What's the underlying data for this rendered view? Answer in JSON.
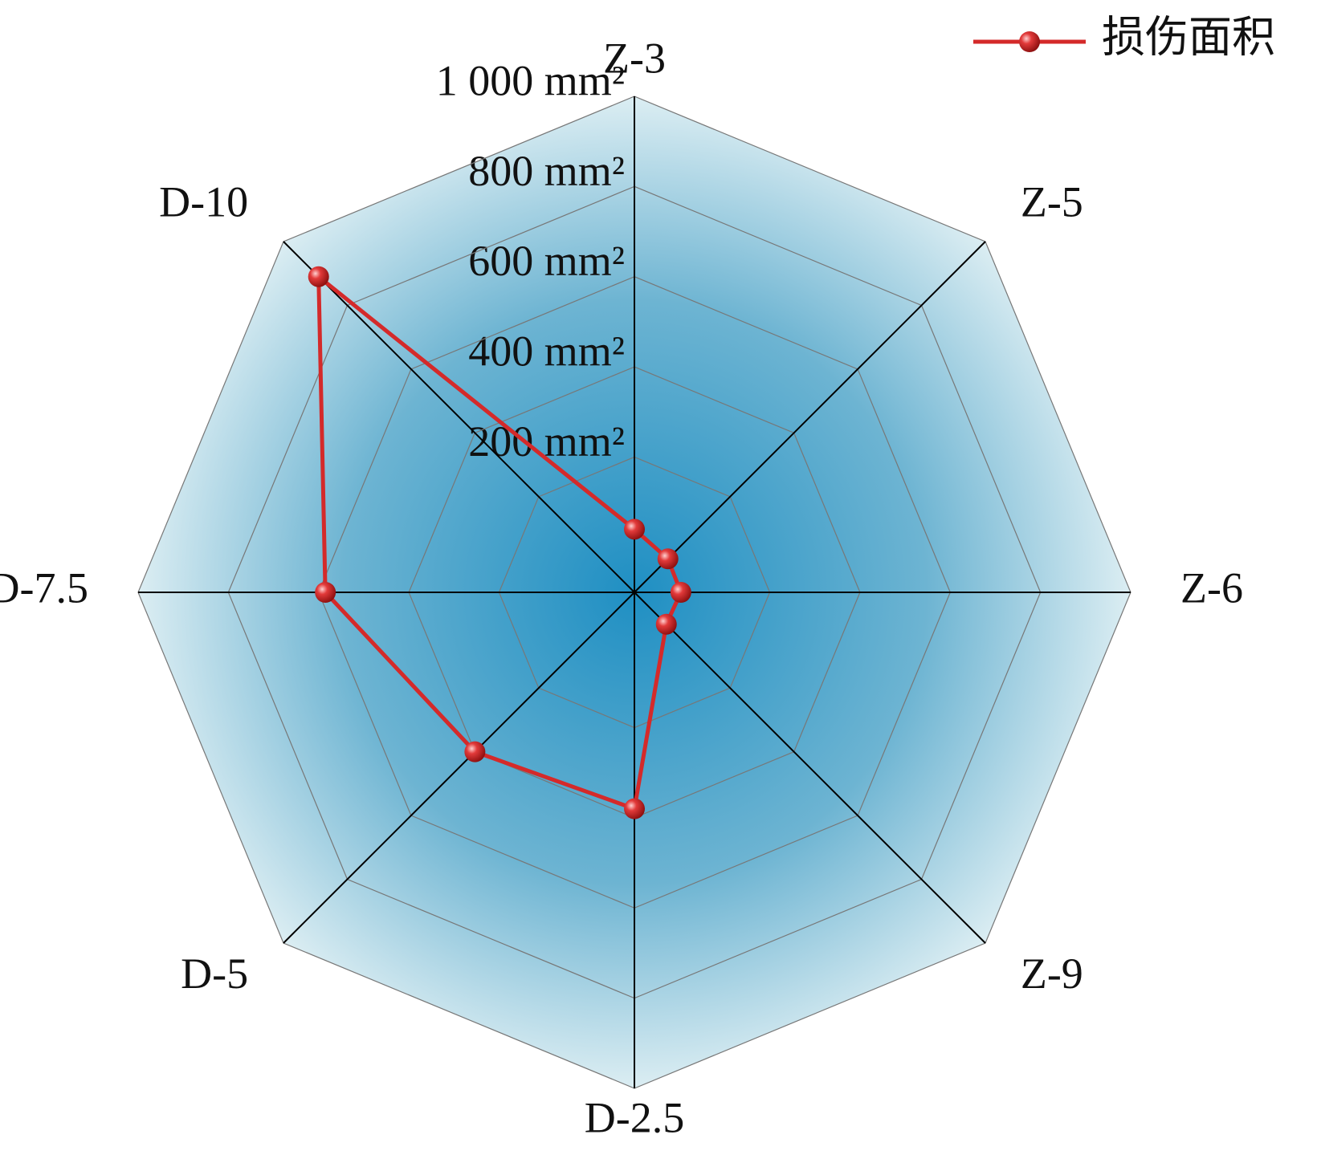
{
  "chart_data": {
    "type": "radar",
    "categories": [
      "Z-3",
      "Z-5",
      "Z-6",
      "Z-9",
      "D-2.5",
      "D-5",
      "D-7.5",
      "D-10"
    ],
    "series": [
      {
        "name": "损伤面积",
        "color": "#d42a2a",
        "values": [
          40,
          5,
          3,
          0,
          380,
          400,
          585,
          890
        ]
      }
    ],
    "ylim": [
      -100,
      1000
    ],
    "yticks": [
      {
        "value": 200,
        "label": "200 mm²"
      },
      {
        "value": 400,
        "label": "400 mm²"
      },
      {
        "value": 600,
        "label": "600 mm²"
      },
      {
        "value": 800,
        "label": "800 mm²"
      },
      {
        "value": 1000,
        "label": "1 000 mm²"
      }
    ],
    "grid": true,
    "legend": "top-right"
  }
}
